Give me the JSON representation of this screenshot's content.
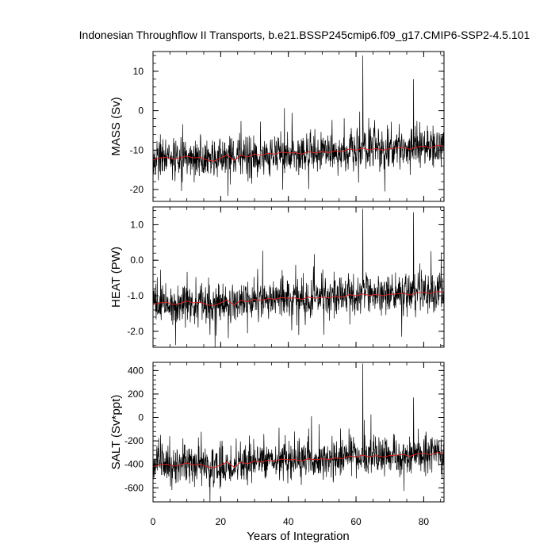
{
  "title": "Indonesian Throughflow II Transports, b.e21.BSSP245cmip6.f09_g17.CMIP6-SSP2-4.5.101",
  "xlabel": "Years of Integration",
  "colors": {
    "raw": "#000000",
    "smooth": "#d62020"
  },
  "chart_data": [
    {
      "type": "line",
      "ylabel": "MASS (Sv)",
      "xlim": [
        0,
        86
      ],
      "ylim": [
        -23,
        15
      ],
      "yticks": [
        10,
        0,
        -10,
        -20
      ],
      "ytick_labels": [
        "10",
        "0",
        "-10",
        "-20"
      ],
      "xticks": [
        0,
        20,
        40,
        60,
        80
      ],
      "xtick_labels": [],
      "series": [
        {
          "x": [
            0,
            2,
            4,
            6,
            8,
            10,
            12,
            14,
            16,
            18,
            20,
            22,
            24,
            26,
            28,
            30,
            32,
            34,
            36,
            38,
            40,
            42,
            44,
            46,
            48,
            50,
            52,
            54,
            56,
            58,
            60,
            62,
            64,
            66,
            68,
            70,
            72,
            74,
            76,
            78,
            80,
            82,
            84,
            86
          ],
          "values": [
            -12.5,
            -12,
            -11.8,
            -12.3,
            -12,
            -11.5,
            -12,
            -11.8,
            -12.5,
            -12.8,
            -12,
            -11.2,
            -12.6,
            -11.3,
            -11.7,
            -11,
            -11.3,
            -10.8,
            -11,
            -10.5,
            -10.7,
            -10.6,
            -11,
            -10.4,
            -10.7,
            -10.4,
            -10.6,
            -10.2,
            -10.4,
            -9.7,
            -10,
            -9.5,
            -9.9,
            -9.6,
            -10,
            -9.6,
            -9.5,
            -9.3,
            -9.8,
            -9.2,
            -9,
            -9.4,
            -8.8,
            -9
          ]
        }
      ],
      "spikes": [
        {
          "x": 62,
          "values": [
            14
          ]
        },
        {
          "x": 77,
          "values": [
            8
          ]
        }
      ]
    },
    {
      "type": "line",
      "ylabel": "HEAT (PW)",
      "xlim": [
        0,
        86
      ],
      "ylim": [
        -2.45,
        1.5
      ],
      "yticks": [
        1.0,
        0.0,
        -1.0,
        -2.0
      ],
      "ytick_labels": [
        "1.0",
        "0.0",
        "-1.0",
        "-2.0"
      ],
      "xticks": [
        0,
        20,
        40,
        60,
        80
      ],
      "xtick_labels": [],
      "series": [
        {
          "x": [
            0,
            2,
            4,
            6,
            8,
            10,
            12,
            14,
            16,
            18,
            20,
            22,
            24,
            26,
            28,
            30,
            32,
            34,
            36,
            38,
            40,
            42,
            44,
            46,
            48,
            50,
            52,
            54,
            56,
            58,
            60,
            62,
            64,
            66,
            68,
            70,
            72,
            74,
            76,
            78,
            80,
            82,
            84,
            86
          ],
          "values": [
            -1.25,
            -1.2,
            -1.18,
            -1.25,
            -1.22,
            -1.15,
            -1.2,
            -1.18,
            -1.25,
            -1.28,
            -1.2,
            -1.12,
            -1.26,
            -1.13,
            -1.17,
            -1.1,
            -1.13,
            -1.08,
            -1.1,
            -1.05,
            -1.07,
            -1.06,
            -1.1,
            -1.04,
            -1.07,
            -1.04,
            -1.06,
            -1.02,
            -1.04,
            -0.97,
            -1,
            -0.95,
            -0.99,
            -0.96,
            -1,
            -0.96,
            -0.95,
            -0.93,
            -0.98,
            -0.92,
            -0.9,
            -0.94,
            -0.88,
            -0.9
          ]
        }
      ],
      "spikes": [
        {
          "x": 62,
          "values": [
            1.45
          ]
        },
        {
          "x": 77,
          "values": [
            1.35
          ]
        }
      ]
    },
    {
      "type": "line",
      "ylabel": "SALT (Sv*ppt)",
      "xlim": [
        0,
        86
      ],
      "ylim": [
        -720,
        470
      ],
      "yticks": [
        400,
        200,
        0,
        -200,
        -400,
        -600
      ],
      "ytick_labels": [
        "400",
        "200",
        "0",
        "-200",
        "-400",
        "-600"
      ],
      "xticks": [
        0,
        20,
        40,
        60,
        80
      ],
      "xtick_labels": [
        "0",
        "20",
        "40",
        "60",
        "80"
      ],
      "series": [
        {
          "x": [
            0,
            2,
            4,
            6,
            8,
            10,
            12,
            14,
            16,
            18,
            20,
            22,
            24,
            26,
            28,
            30,
            32,
            34,
            36,
            38,
            40,
            42,
            44,
            46,
            48,
            50,
            52,
            54,
            56,
            58,
            60,
            62,
            64,
            66,
            68,
            70,
            72,
            74,
            76,
            78,
            80,
            82,
            84,
            86
          ],
          "values": [
            -420,
            -405,
            -398,
            -415,
            -405,
            -388,
            -405,
            -398,
            -420,
            -430,
            -405,
            -380,
            -425,
            -382,
            -395,
            -372,
            -382,
            -365,
            -372,
            -355,
            -362,
            -358,
            -372,
            -352,
            -362,
            -352,
            -358,
            -345,
            -352,
            -328,
            -338,
            -322,
            -335,
            -325,
            -338,
            -325,
            -322,
            -315,
            -332,
            -312,
            -305,
            -318,
            -298,
            -305
          ]
        }
      ],
      "spikes": [
        {
          "x": 62,
          "values": [
            460
          ]
        },
        {
          "x": 77,
          "values": [
            170
          ]
        }
      ]
    }
  ]
}
